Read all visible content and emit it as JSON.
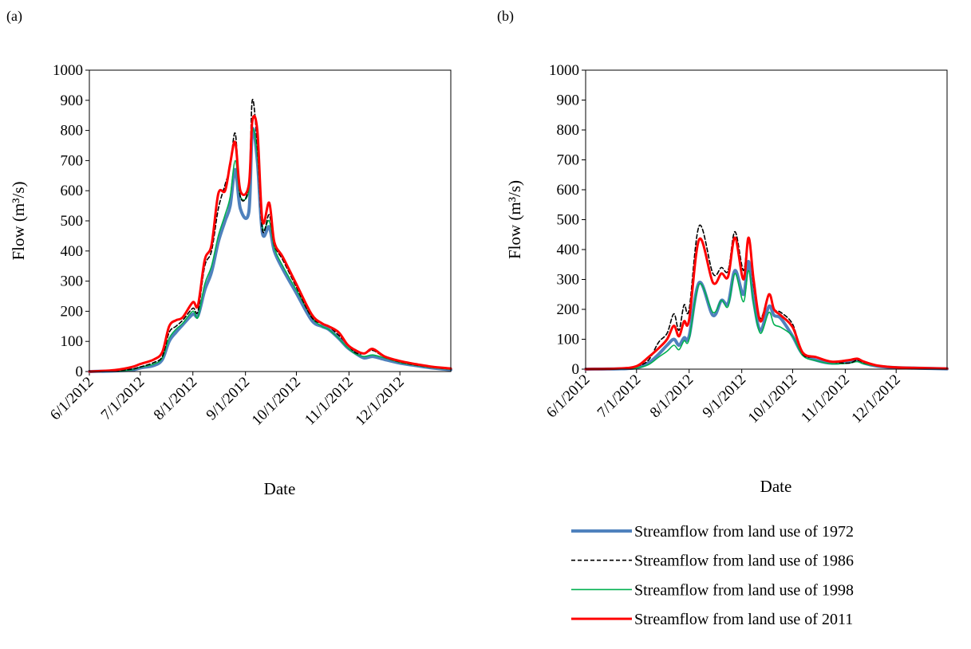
{
  "legend": {
    "entries": [
      {
        "label": "Streamflow from land use of 1972",
        "color": "#4F81BD",
        "dash": "solid",
        "width": 4
      },
      {
        "label": "Streamflow from land use of 1986",
        "color": "#000000",
        "dash": "dashed",
        "width": 1.6
      },
      {
        "label": "Streamflow from land use of 1998",
        "color": "#00B050",
        "dash": "solid",
        "width": 1.6
      },
      {
        "label": "Streamflow from land use of 2011",
        "color": "#FF0000",
        "dash": "solid",
        "width": 3
      }
    ]
  },
  "chart_data": [
    {
      "type": "line",
      "panel_label": "(a)",
      "xlabel": "Date",
      "ylabel": "Flow (m³/s)",
      "ylim": [
        0,
        1000
      ],
      "yticks": [
        0,
        100,
        200,
        300,
        400,
        500,
        600,
        700,
        800,
        900,
        1000
      ],
      "xlim": [
        "2012-06-01",
        "2012-12-31"
      ],
      "xticks": [
        {
          "date": "2012-06-01",
          "label": "6/1/2012"
        },
        {
          "date": "2012-07-01",
          "label": "7/1/2012"
        },
        {
          "date": "2012-08-01",
          "label": "8/1/2012"
        },
        {
          "date": "2012-09-01",
          "label": "9/1/2012"
        },
        {
          "date": "2012-10-01",
          "label": "10/1/2012"
        },
        {
          "date": "2012-11-01",
          "label": "11/1/2012"
        },
        {
          "date": "2012-12-01",
          "label": "12/1/2012"
        }
      ],
      "grid": false,
      "x": [
        "2012-06-01",
        "2012-06-16",
        "2012-06-26",
        "2012-07-01",
        "2012-07-09",
        "2012-07-14",
        "2012-07-18",
        "2012-07-22",
        "2012-07-26",
        "2012-08-01",
        "2012-08-04",
        "2012-08-08",
        "2012-08-12",
        "2012-08-16",
        "2012-08-20",
        "2012-08-23",
        "2012-08-26",
        "2012-08-29",
        "2012-09-03",
        "2012-09-05",
        "2012-09-08",
        "2012-09-11",
        "2012-09-15",
        "2012-09-18",
        "2012-09-23",
        "2012-10-01",
        "2012-10-10",
        "2012-10-16",
        "2012-10-20",
        "2012-10-26",
        "2012-10-31",
        "2012-11-05",
        "2012-11-10",
        "2012-11-15",
        "2012-11-22",
        "2012-12-01",
        "2012-12-10",
        "2012-12-20",
        "2012-12-31"
      ],
      "series": [
        {
          "values": [
            0,
            2,
            5,
            12,
            20,
            40,
            100,
            130,
            155,
            190,
            185,
            270,
            330,
            430,
            500,
            550,
            670,
            540,
            530,
            800,
            700,
            460,
            480,
            400,
            340,
            260,
            170,
            150,
            140,
            110,
            80,
            60,
            45,
            50,
            40,
            28,
            20,
            12,
            6
          ]
        },
        {
          "values": [
            0,
            3,
            8,
            15,
            30,
            50,
            130,
            150,
            170,
            210,
            200,
            350,
            400,
            540,
            620,
            680,
            790,
            580,
            620,
            900,
            750,
            470,
            520,
            420,
            370,
            280,
            180,
            160,
            150,
            120,
            90,
            62,
            60,
            70,
            48,
            32,
            22,
            14,
            8
          ]
        },
        {
          "values": [
            0,
            2,
            6,
            14,
            25,
            45,
            110,
            140,
            160,
            200,
            180,
            290,
            350,
            450,
            520,
            580,
            700,
            580,
            600,
            800,
            720,
            480,
            500,
            410,
            350,
            270,
            180,
            150,
            140,
            110,
            80,
            58,
            50,
            55,
            45,
            30,
            21,
            13,
            7
          ]
        },
        {
          "values": [
            0,
            5,
            15,
            25,
            40,
            65,
            150,
            170,
            180,
            230,
            220,
            370,
            420,
            590,
            600,
            690,
            760,
            600,
            620,
            830,
            800,
            500,
            560,
            430,
            380,
            290,
            190,
            160,
            150,
            130,
            90,
            70,
            60,
            75,
            50,
            35,
            25,
            16,
            10
          ]
        }
      ]
    },
    {
      "type": "line",
      "panel_label": "(b)",
      "xlabel": "Date",
      "ylabel": "Flow (m³/s)",
      "ylim": [
        0,
        1000
      ],
      "yticks": [
        0,
        100,
        200,
        300,
        400,
        500,
        600,
        700,
        800,
        900,
        1000
      ],
      "xlim": [
        "2012-06-01",
        "2012-12-31"
      ],
      "xticks": [
        {
          "date": "2012-06-01",
          "label": "6/1/2012"
        },
        {
          "date": "2012-07-01",
          "label": "7/1/2012"
        },
        {
          "date": "2012-08-01",
          "label": "8/1/2012"
        },
        {
          "date": "2012-09-01",
          "label": "9/1/2012"
        },
        {
          "date": "2012-10-01",
          "label": "10/1/2012"
        },
        {
          "date": "2012-11-01",
          "label": "11/1/2012"
        },
        {
          "date": "2012-12-01",
          "label": "12/1/2012"
        }
      ],
      "grid": false,
      "x": [
        "2012-06-01",
        "2012-06-20",
        "2012-07-01",
        "2012-07-08",
        "2012-07-14",
        "2012-07-19",
        "2012-07-23",
        "2012-07-26",
        "2012-07-29",
        "2012-08-01",
        "2012-08-07",
        "2012-08-15",
        "2012-08-20",
        "2012-08-24",
        "2012-08-28",
        "2012-09-02",
        "2012-09-05",
        "2012-09-08",
        "2012-09-12",
        "2012-09-17",
        "2012-09-20",
        "2012-09-24",
        "2012-10-01",
        "2012-10-07",
        "2012-10-15",
        "2012-10-24",
        "2012-11-03",
        "2012-11-08",
        "2012-11-12",
        "2012-11-20",
        "2012-12-01",
        "2012-12-15",
        "2012-12-31"
      ],
      "series": [
        {
          "values": [
            0,
            1,
            5,
            20,
            50,
            80,
            100,
            80,
            105,
            110,
            290,
            180,
            230,
            220,
            330,
            250,
            360,
            230,
            130,
            210,
            180,
            170,
            110,
            50,
            30,
            20,
            25,
            30,
            20,
            10,
            5,
            3,
            1
          ]
        },
        {
          "values": [
            0,
            2,
            10,
            30,
            90,
            120,
            185,
            130,
            215,
            200,
            480,
            320,
            340,
            330,
            460,
            330,
            440,
            280,
            170,
            250,
            200,
            190,
            150,
            50,
            40,
            25,
            20,
            30,
            22,
            12,
            6,
            4,
            2
          ]
        },
        {
          "values": [
            0,
            1,
            4,
            15,
            40,
            60,
            80,
            65,
            95,
            100,
            285,
            190,
            230,
            210,
            320,
            225,
            330,
            220,
            120,
            190,
            150,
            140,
            110,
            45,
            28,
            18,
            20,
            25,
            18,
            10,
            5,
            3,
            1
          ]
        },
        {
          "values": [
            0,
            2,
            10,
            40,
            70,
            100,
            145,
            110,
            160,
            165,
            435,
            290,
            320,
            310,
            440,
            300,
            440,
            300,
            160,
            250,
            200,
            180,
            140,
            55,
            40,
            25,
            30,
            35,
            25,
            12,
            6,
            4,
            2
          ]
        }
      ]
    }
  ]
}
